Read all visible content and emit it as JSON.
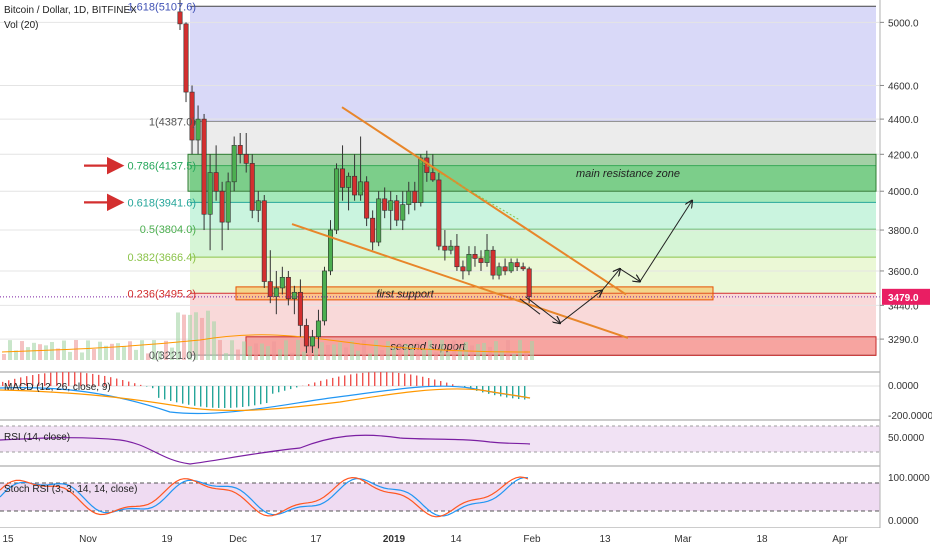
{
  "header": {
    "symbol": "Bitcoin / Dollar, 1D, BITFINEX",
    "volume": "Vol (20)"
  },
  "chart_data": [
    {
      "type": "candlestick",
      "x_axis": {
        "tick_labels": [
          "15",
          "Nov",
          "19",
          "Dec",
          "17",
          "2019",
          "14",
          "Feb",
          "13",
          "Mar",
          "18",
          "Apr"
        ]
      },
      "y_axis": {
        "scale": "log",
        "tick_labels": [
          "5000.0",
          "4600.0",
          "4400.0",
          "4200.0",
          "4000.0",
          "3800.0",
          "3600.0",
          "3440.0",
          "3290.0"
        ],
        "last_price": "3479.0",
        "last_price_color": "#e91e63"
      },
      "fibonacci": [
        {
          "label": "1.618(5107.6)",
          "value": 5107.6,
          "fill": "#ccccf5",
          "line": "#444444"
        },
        {
          "label": "1(4387.0)",
          "value": 4387.0,
          "fill": "#e6e6e6",
          "line": "#888888"
        },
        {
          "label": "0.786(4137.5)",
          "value": 4137.5,
          "fill": "#85e0a3",
          "line": "#26a65b"
        },
        {
          "label": "0.618(3941.6)",
          "value": 3941.6,
          "fill": "#b8f0d4",
          "line": "#26a69a"
        },
        {
          "label": "0.5(3804.0)",
          "value": 3804.0,
          "fill": "#c8f2c8",
          "line": "#4caf50"
        },
        {
          "label": "0.382(3666.4)",
          "value": 3666.4,
          "fill": "#e4f5c8",
          "line": "#8bc34a"
        },
        {
          "label": "0.236(3495.2)",
          "value": 3495.2,
          "fill": "#f7cccc",
          "line": "#d32f2f"
        },
        {
          "label": "0(3221.0)",
          "value": 3221.0,
          "fill": "#f7cccc",
          "line": "#888888"
        }
      ],
      "zones": [
        {
          "label": "main resistance zone",
          "low": 4000,
          "high": 4200
        },
        {
          "label": "first support",
          "low": 3465,
          "high": 3525
        },
        {
          "label": "second support",
          "low": 3220,
          "high": 3300
        }
      ],
      "arrows": [
        "#d32f2f",
        "#d32f2f"
      ],
      "candles": [
        {
          "o": 5070,
          "h": 5150,
          "l": 4950,
          "c": 4990
        },
        {
          "o": 4990,
          "h": 5000,
          "l": 4500,
          "c": 4560
        },
        {
          "o": 4560,
          "h": 4600,
          "l": 4200,
          "c": 4280
        },
        {
          "o": 4280,
          "h": 4480,
          "l": 4200,
          "c": 4400
        },
        {
          "o": 4400,
          "h": 4430,
          "l": 3800,
          "c": 3880
        },
        {
          "o": 3880,
          "h": 4200,
          "l": 3700,
          "c": 4100
        },
        {
          "o": 4100,
          "h": 4250,
          "l": 3950,
          "c": 4000
        },
        {
          "o": 4000,
          "h": 4050,
          "l": 3700,
          "c": 3840
        },
        {
          "o": 3840,
          "h": 4100,
          "l": 3800,
          "c": 4050
        },
        {
          "o": 4050,
          "h": 4300,
          "l": 4000,
          "c": 4250
        },
        {
          "o": 4250,
          "h": 4320,
          "l": 4150,
          "c": 4200
        },
        {
          "o": 4200,
          "h": 4320,
          "l": 4100,
          "c": 4150
        },
        {
          "o": 4150,
          "h": 4200,
          "l": 3860,
          "c": 3900
        },
        {
          "o": 3900,
          "h": 4000,
          "l": 3840,
          "c": 3950
        },
        {
          "o": 3950,
          "h": 3980,
          "l": 3520,
          "c": 3550
        },
        {
          "o": 3550,
          "h": 3700,
          "l": 3450,
          "c": 3480
        },
        {
          "o": 3480,
          "h": 3600,
          "l": 3400,
          "c": 3520
        },
        {
          "o": 3520,
          "h": 3620,
          "l": 3490,
          "c": 3570
        },
        {
          "o": 3570,
          "h": 3600,
          "l": 3440,
          "c": 3470
        },
        {
          "o": 3470,
          "h": 3530,
          "l": 3400,
          "c": 3500
        },
        {
          "o": 3500,
          "h": 3560,
          "l": 3300,
          "c": 3350
        },
        {
          "o": 3350,
          "h": 3380,
          "l": 3230,
          "c": 3260
        },
        {
          "o": 3260,
          "h": 3330,
          "l": 3230,
          "c": 3300
        },
        {
          "o": 3300,
          "h": 3420,
          "l": 3250,
          "c": 3370
        },
        {
          "o": 3370,
          "h": 3620,
          "l": 3350,
          "c": 3600
        },
        {
          "o": 3600,
          "h": 3850,
          "l": 3580,
          "c": 3800
        },
        {
          "o": 3800,
          "h": 4150,
          "l": 3780,
          "c": 4120
        },
        {
          "o": 4120,
          "h": 4250,
          "l": 3950,
          "c": 4020
        },
        {
          "o": 4020,
          "h": 4100,
          "l": 3900,
          "c": 4080
        },
        {
          "o": 4080,
          "h": 4200,
          "l": 3950,
          "c": 3980
        },
        {
          "o": 3980,
          "h": 4300,
          "l": 3950,
          "c": 4050
        },
        {
          "o": 4050,
          "h": 4080,
          "l": 3820,
          "c": 3860
        },
        {
          "o": 3860,
          "h": 3900,
          "l": 3700,
          "c": 3740
        },
        {
          "o": 3740,
          "h": 4000,
          "l": 3720,
          "c": 3960
        },
        {
          "o": 3960,
          "h": 4020,
          "l": 3860,
          "c": 3900
        },
        {
          "o": 3900,
          "h": 4000,
          "l": 3800,
          "c": 3950
        },
        {
          "o": 3950,
          "h": 3980,
          "l": 3820,
          "c": 3850
        },
        {
          "o": 3850,
          "h": 4000,
          "l": 3800,
          "c": 3930
        },
        {
          "o": 3930,
          "h": 4050,
          "l": 3880,
          "c": 4000
        },
        {
          "o": 4000,
          "h": 4050,
          "l": 3900,
          "c": 3940
        },
        {
          "o": 3940,
          "h": 4200,
          "l": 3920,
          "c": 4180
        },
        {
          "o": 4180,
          "h": 4220,
          "l": 4050,
          "c": 4100
        },
        {
          "o": 4100,
          "h": 4200,
          "l": 4050,
          "c": 4060
        },
        {
          "o": 4060,
          "h": 4100,
          "l": 3700,
          "c": 3720
        },
        {
          "o": 3720,
          "h": 3800,
          "l": 3650,
          "c": 3700
        },
        {
          "o": 3700,
          "h": 3750,
          "l": 3680,
          "c": 3720
        },
        {
          "o": 3720,
          "h": 3780,
          "l": 3600,
          "c": 3620
        },
        {
          "o": 3620,
          "h": 3650,
          "l": 3560,
          "c": 3600
        },
        {
          "o": 3600,
          "h": 3720,
          "l": 3580,
          "c": 3680
        },
        {
          "o": 3680,
          "h": 3720,
          "l": 3620,
          "c": 3660
        },
        {
          "o": 3660,
          "h": 3700,
          "l": 3600,
          "c": 3640
        },
        {
          "o": 3640,
          "h": 3780,
          "l": 3620,
          "c": 3700
        },
        {
          "o": 3700,
          "h": 3720,
          "l": 3560,
          "c": 3580
        },
        {
          "o": 3580,
          "h": 3640,
          "l": 3560,
          "c": 3620
        },
        {
          "o": 3620,
          "h": 3660,
          "l": 3580,
          "c": 3600
        },
        {
          "o": 3600,
          "h": 3660,
          "l": 3590,
          "c": 3640
        },
        {
          "o": 3640,
          "h": 3660,
          "l": 3600,
          "c": 3620
        },
        {
          "o": 3620,
          "h": 3640,
          "l": 3600,
          "c": 3610
        },
        {
          "o": 3610,
          "h": 3620,
          "l": 3450,
          "c": 3480
        }
      ]
    },
    {
      "type": "line",
      "name": "MACD (12, 26, close, 9)",
      "y_axis": {
        "tick_labels": [
          "0.0000",
          "-200.0000"
        ]
      }
    },
    {
      "type": "line",
      "name": "RSI (14, close)",
      "y_axis": {
        "tick_labels": [
          "50.0000"
        ]
      }
    },
    {
      "type": "line",
      "name": "Stoch RSI (3, 3, 14, 14, close)",
      "y_axis": {
        "tick_labels": [
          "100.0000",
          "0.0000"
        ]
      }
    }
  ]
}
